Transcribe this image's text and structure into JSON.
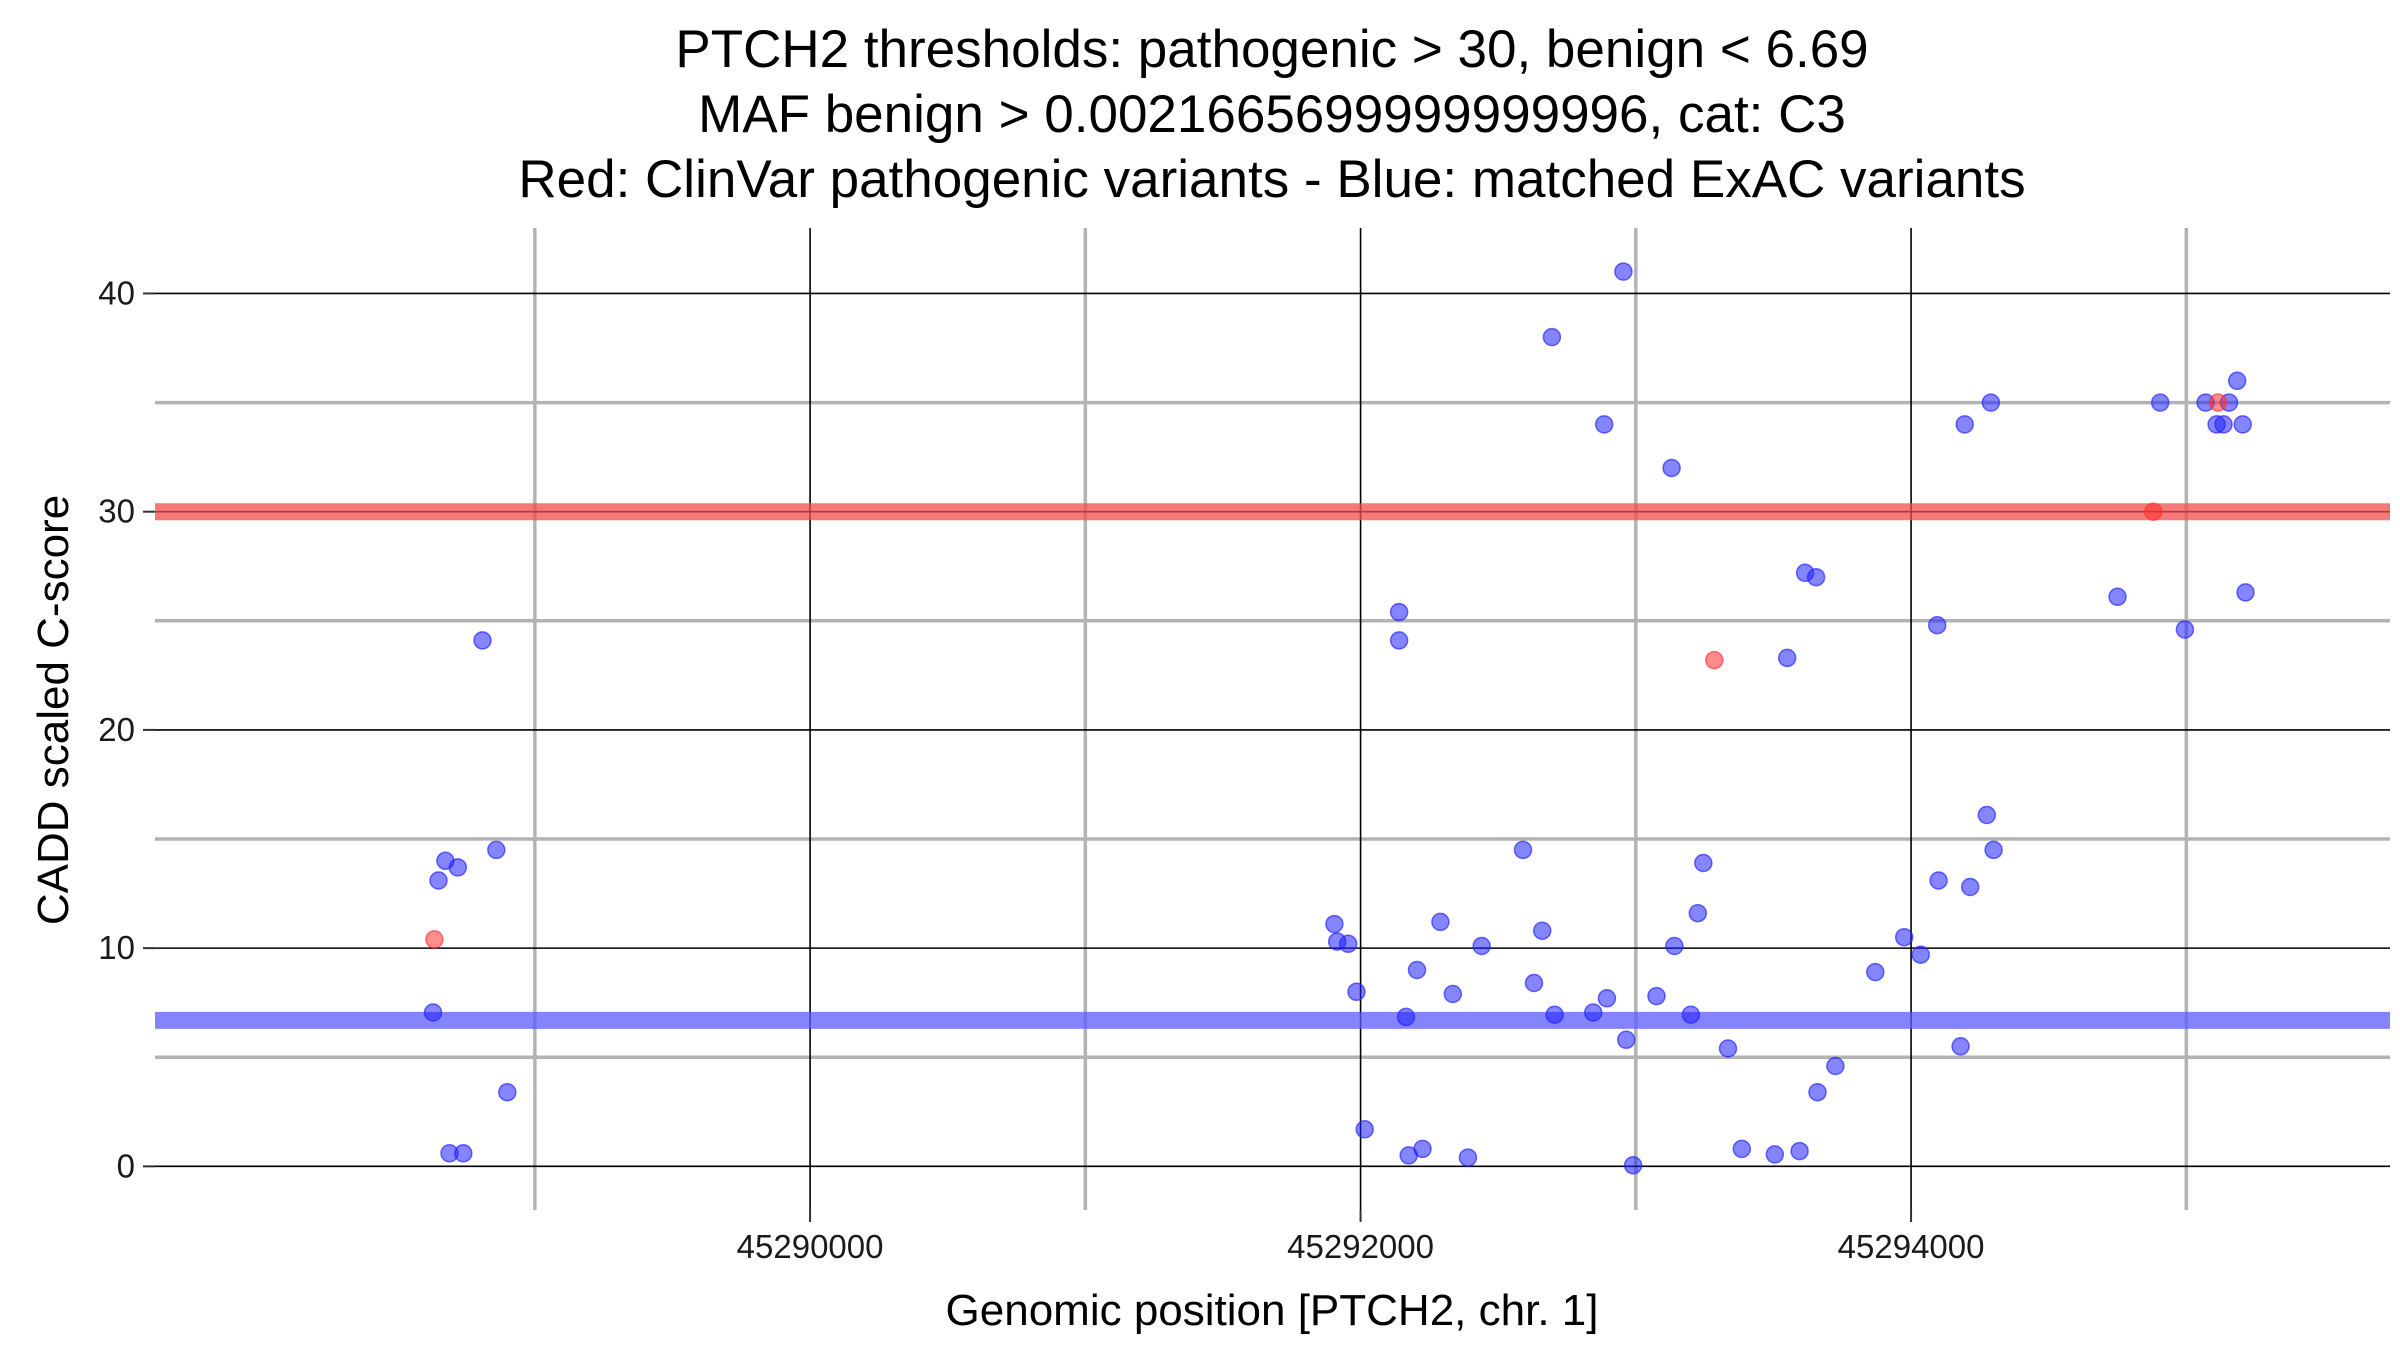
{
  "chart_data": {
    "type": "scatter",
    "title": [
      "PTCH2 thresholds: pathogenic > 30, benign < 6.69",
      "MAF benign > 0.0021665699999999996, cat: C3",
      "Red: ClinVar pathogenic variants - Blue: matched ExAC variants"
    ],
    "xlabel": "Genomic position [PTCH2, chr. 1]",
    "ylabel": "CADD scaled C-score",
    "xlim": [
      45287620,
      45295740
    ],
    "ylim": [
      -2,
      43
    ],
    "x_ticks": [
      {
        "value": 45290000,
        "label": "45290000"
      },
      {
        "value": 45292000,
        "label": "45292000"
      },
      {
        "value": 45294000,
        "label": "45294000"
      }
    ],
    "x_minor_ticks": [
      45289000,
      45291000,
      45293000,
      45295000
    ],
    "y_ticks": [
      {
        "value": 0,
        "label": "0"
      },
      {
        "value": 10,
        "label": "10"
      },
      {
        "value": 20,
        "label": "20"
      },
      {
        "value": 30,
        "label": "30"
      },
      {
        "value": 40,
        "label": "40"
      }
    ],
    "y_minor_ticks": [
      5,
      15,
      25,
      35
    ],
    "grid": true,
    "thresholds": [
      {
        "name": "pathogenic",
        "value": 30,
        "color": "#f24c4c"
      },
      {
        "name": "benign",
        "value": 6.69,
        "color": "#5b5bff"
      }
    ],
    "series": [
      {
        "name": "ClinVar pathogenic variants",
        "color": "#ff3030",
        "points": [
          [
            45288635,
            10.4
          ],
          [
            45293285,
            23.2
          ],
          [
            45294880,
            30
          ],
          [
            45295115,
            35
          ]
        ]
      },
      {
        "name": "matched ExAC variants",
        "color": "#2020ff",
        "points": [
          [
            45288630,
            7.05
          ],
          [
            45288650,
            13.1
          ],
          [
            45288675,
            14.0
          ],
          [
            45288690,
            0.6
          ],
          [
            45288720,
            13.7
          ],
          [
            45288740,
            0.6
          ],
          [
            45288810,
            24.1
          ],
          [
            45288860,
            14.5
          ],
          [
            45288900,
            3.4
          ],
          [
            45291905,
            11.1
          ],
          [
            45291915,
            10.3
          ],
          [
            45291955,
            10.2
          ],
          [
            45291985,
            8.0
          ],
          [
            45292015,
            1.7
          ],
          [
            45292140,
            25.4
          ],
          [
            45292140,
            24.1
          ],
          [
            45292165,
            6.85
          ],
          [
            45292175,
            0.5
          ],
          [
            45292205,
            9.0
          ],
          [
            45292225,
            0.8
          ],
          [
            45292290,
            11.2
          ],
          [
            45292335,
            7.9
          ],
          [
            45292390,
            0.4
          ],
          [
            45292440,
            10.1
          ],
          [
            45292590,
            14.5
          ],
          [
            45292630,
            8.4
          ],
          [
            45292660,
            10.8
          ],
          [
            45292695,
            38.0
          ],
          [
            45292705,
            6.95
          ],
          [
            45292845,
            7.05
          ],
          [
            45292885,
            34.0
          ],
          [
            45292895,
            7.7
          ],
          [
            45292955,
            41.0
          ],
          [
            45292965,
            5.8
          ],
          [
            45292990,
            0.05
          ],
          [
            45293075,
            7.8
          ],
          [
            45293130,
            32.0
          ],
          [
            45293140,
            10.1
          ],
          [
            45293200,
            6.95
          ],
          [
            45293225,
            11.6
          ],
          [
            45293245,
            13.9
          ],
          [
            45293335,
            5.4
          ],
          [
            45293385,
            0.8
          ],
          [
            45293505,
            0.55
          ],
          [
            45293550,
            23.3
          ],
          [
            45293595,
            0.7
          ],
          [
            45293615,
            27.2
          ],
          [
            45293655,
            27.0
          ],
          [
            45293660,
            3.4
          ],
          [
            45293725,
            4.6
          ],
          [
            45293870,
            8.9
          ],
          [
            45293975,
            10.5
          ],
          [
            45294035,
            9.7
          ],
          [
            45294095,
            24.8
          ],
          [
            45294100,
            13.1
          ],
          [
            45294180,
            5.5
          ],
          [
            45294195,
            34.0
          ],
          [
            45294215,
            12.8
          ],
          [
            45294275,
            16.1
          ],
          [
            45294290,
            35.0
          ],
          [
            45294300,
            14.5
          ],
          [
            45294750,
            26.1
          ],
          [
            45294905,
            35.0
          ],
          [
            45294995,
            24.6
          ],
          [
            45295070,
            35.0
          ],
          [
            45295110,
            34.0
          ],
          [
            45295135,
            34.0
          ],
          [
            45295155,
            35.0
          ],
          [
            45295185,
            36.0
          ],
          [
            45295205,
            34.0
          ],
          [
            45295215,
            26.3
          ]
        ]
      }
    ]
  }
}
